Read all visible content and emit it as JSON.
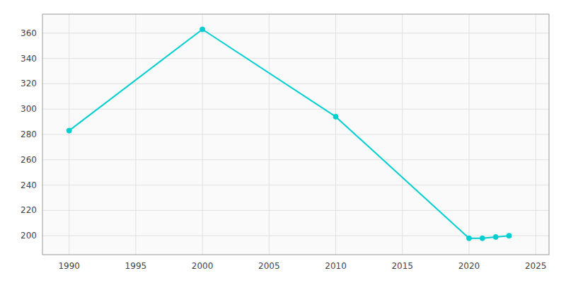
{
  "chart_data": {
    "type": "line",
    "x": [
      1990,
      2000,
      2010,
      2020,
      2021,
      2022,
      2023
    ],
    "values": [
      283,
      363,
      294,
      198,
      198,
      199,
      200
    ],
    "color": "#00CED1",
    "marker": "circle",
    "xlim": [
      1988,
      2026
    ],
    "ylim": [
      185,
      375
    ],
    "xticks": [
      1990,
      1995,
      2000,
      2005,
      2010,
      2015,
      2020,
      2025
    ],
    "yticks": [
      200,
      220,
      240,
      260,
      280,
      300,
      320,
      340,
      360
    ],
    "grid": true
  }
}
